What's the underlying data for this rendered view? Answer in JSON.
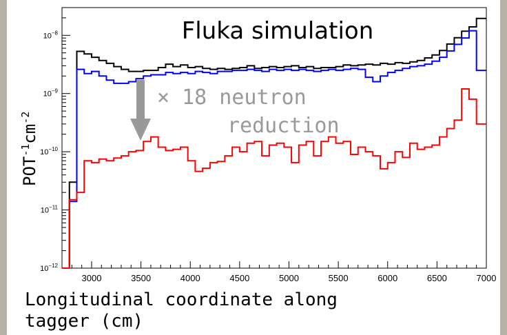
{
  "chart_data": {
    "type": "line",
    "title": "Fluka simulation",
    "annotation": "× 18 neutron\nreduction",
    "xlabel": "Longitudinal coordinate along tagger (cm)",
    "ylabel": "POT-1cm-2",
    "ylabel_parts": {
      "base1": "POT",
      "exp1": "-1",
      "base2": "cm",
      "exp2": "-2"
    },
    "xlim": [
      2700,
      7000
    ],
    "ylim": [
      1e-12,
      3e-08
    ],
    "log_y": true,
    "x_ticks": [
      3000,
      3500,
      4000,
      4500,
      5000,
      5500,
      6000,
      6500,
      7000
    ],
    "x_tick_labels": [
      "3000",
      "3500",
      "4000",
      "4500",
      "5000",
      "5500",
      "6000",
      "6500",
      "7000"
    ],
    "y_ticks": [
      1e-12,
      1e-11,
      1e-10,
      1e-09,
      1e-08
    ],
    "y_tick_labels": [
      {
        "base": "10",
        "exp": "−12"
      },
      {
        "base": "10",
        "exp": "−11"
      },
      {
        "base": "10",
        "exp": "−10"
      },
      {
        "base": "10",
        "exp": "−9"
      },
      {
        "base": "10",
        "exp": "−8"
      }
    ],
    "bin_edges": [
      2700,
      2775,
      2850,
      2925,
      3000,
      3075,
      3150,
      3225,
      3300,
      3375,
      3450,
      3525,
      3600,
      3675,
      3750,
      3825,
      3900,
      3975,
      4050,
      4125,
      4200,
      4275,
      4350,
      4425,
      4500,
      4575,
      4650,
      4725,
      4800,
      4875,
      4950,
      5025,
      5100,
      5175,
      5250,
      5325,
      5400,
      5475,
      5550,
      5625,
      5700,
      5775,
      5850,
      5925,
      6000,
      6075,
      6150,
      6225,
      6300,
      6375,
      6450,
      6525,
      6600,
      6675,
      6750,
      6825,
      6900,
      7000
    ],
    "series": [
      {
        "color": "#000000",
        "values": [
          1e-12,
          3e-11,
          5.3e-09,
          4.8e-09,
          4.2e-09,
          3.7e-09,
          3.3e-09,
          2.9e-09,
          2.6e-09,
          2.4e-09,
          2.4e-09,
          2.5e-09,
          2.5e-09,
          2.8e-09,
          3.2e-09,
          2.9e-09,
          3.1e-09,
          2.8e-09,
          2.9e-09,
          2.7e-09,
          2.6e-09,
          2.7e-09,
          2.6e-09,
          2.7e-09,
          2.8e-09,
          3e-09,
          2.7e-09,
          2.8e-09,
          2.9e-09,
          2.8e-09,
          2.9e-09,
          3e-09,
          2.8e-09,
          2.9e-09,
          2.7e-09,
          2.8e-09,
          2.8e-09,
          2.9e-09,
          3.1e-09,
          3e-09,
          3.1e-09,
          3.2e-09,
          3.1e-09,
          3.3e-09,
          3.2e-09,
          3.4e-09,
          3.3e-09,
          3.5e-09,
          3.7e-09,
          4.1e-09,
          4.6e-09,
          5.5e-09,
          7.1e-09,
          9.1e-09,
          1.18e-08,
          1.4e-08,
          1.95e-08
        ]
      },
      {
        "color": "#0000ff",
        "values": [
          1e-12,
          1.4e-11,
          2.6e-09,
          2.2e-09,
          2.4e-09,
          2e-09,
          1.7e-09,
          1.5e-09,
          1.5e-09,
          1.6e-09,
          1.8e-09,
          2e-09,
          2.1e-09,
          2.1e-09,
          2.3e-09,
          2.2e-09,
          2.3e-09,
          2.2e-09,
          2.4e-09,
          2.3e-09,
          2.2e-09,
          2.4e-09,
          2.4e-09,
          2.5e-09,
          2.5e-09,
          2.6e-09,
          2.5e-09,
          2.4e-09,
          2.6e-09,
          2.5e-09,
          2.6e-09,
          2.5e-09,
          2.6e-09,
          2.5e-09,
          2.4e-09,
          2.5e-09,
          2.6e-09,
          2.5e-09,
          2.6e-09,
          2.7e-09,
          2.6e-09,
          1.9e-09,
          1.6e-09,
          2e-09,
          2.3e-09,
          2.5e-09,
          2.7e-09,
          2.9e-09,
          3e-09,
          3.2e-09,
          3.6e-09,
          4.2e-09,
          5.4e-09,
          7e-09,
          9e-09,
          1.2e-08,
          2.5e-09
        ]
      },
      {
        "color": "#ff0000",
        "values": [
          1e-12,
          1.5e-11,
          2e-11,
          7e-11,
          6.5e-11,
          7.5e-11,
          7e-11,
          7.8e-11,
          8.5e-11,
          1e-10,
          1.05e-10,
          1.5e-10,
          1.8e-10,
          1.2e-10,
          1.05e-10,
          1.1e-10,
          1.2e-10,
          7e-11,
          4.6e-11,
          5.2e-11,
          6.5e-11,
          6.8e-11,
          8.5e-11,
          1.2e-10,
          1e-10,
          1.4e-10,
          1.5e-10,
          8.5e-11,
          1.3e-10,
          1.4e-10,
          1.2e-10,
          6.5e-11,
          1.3e-10,
          1.5e-10,
          8.5e-11,
          1.5e-10,
          1.8e-10,
          1.4e-10,
          1.5e-10,
          9e-11,
          1.2e-10,
          1e-10,
          8.5e-11,
          5.1e-11,
          6.5e-11,
          1e-10,
          8e-11,
          1.4e-10,
          1.1e-10,
          1.2e-10,
          1.3e-10,
          1.8e-10,
          2.5e-10,
          3.5e-10,
          1.2e-09,
          8e-10,
          3e-10
        ]
      }
    ],
    "grid": false,
    "legend": false
  }
}
